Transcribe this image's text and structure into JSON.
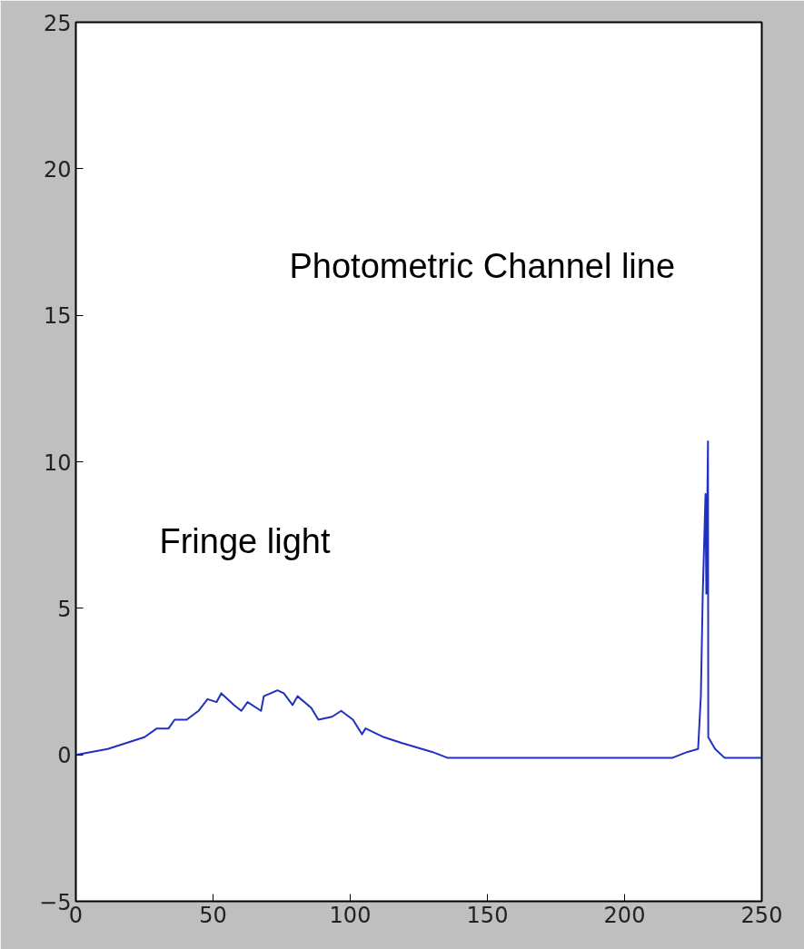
{
  "chart_data": {
    "type": "line",
    "x": [
      0,
      11.6,
      25,
      29.5,
      33.8,
      36,
      40.4,
      44.7,
      48,
      51.3,
      53,
      57.6,
      60.3,
      62.6,
      67.5,
      68.5,
      73.5,
      75.8,
      79,
      80.8,
      85.8,
      88.4,
      93.4,
      96.7,
      101,
      104.3,
      105.6,
      112.3,
      118.9,
      129.8,
      135.4,
      150,
      180,
      200,
      217.5,
      223,
      226.8,
      227.8,
      228.5,
      229.5,
      229.8,
      230.4,
      230.5,
      233,
      236.4,
      250
    ],
    "series": [
      {
        "color": "#2030c0",
        "values": [
          0,
          0.2,
          0.6,
          0.9,
          0.9,
          1.2,
          1.2,
          1.5,
          1.9,
          1.8,
          2.1,
          1.7,
          1.5,
          1.8,
          1.5,
          2.0,
          2.2,
          2.1,
          1.7,
          2.0,
          1.6,
          1.2,
          1.3,
          1.5,
          1.2,
          0.7,
          0.9,
          0.6,
          0.4,
          0.1,
          -0.1,
          -0.1,
          -0.1,
          -0.1,
          -0.1,
          0.1,
          0.2,
          2.0,
          5.5,
          8.9,
          5.5,
          10.7,
          0.6,
          0.2,
          -0.1,
          -0.1
        ]
      }
    ],
    "xlim": [
      0,
      250
    ],
    "ylim": [
      -5,
      25
    ],
    "xticks": [
      0,
      50,
      100,
      150,
      200,
      250
    ],
    "yticks": [
      {
        "value": -5,
        "label": "−5"
      },
      0,
      5,
      10,
      15,
      20,
      25
    ],
    "grid": false,
    "marker": "none",
    "line_style": "solid",
    "annotations": [
      "Photometric Channel line",
      "Fringe light"
    ]
  }
}
